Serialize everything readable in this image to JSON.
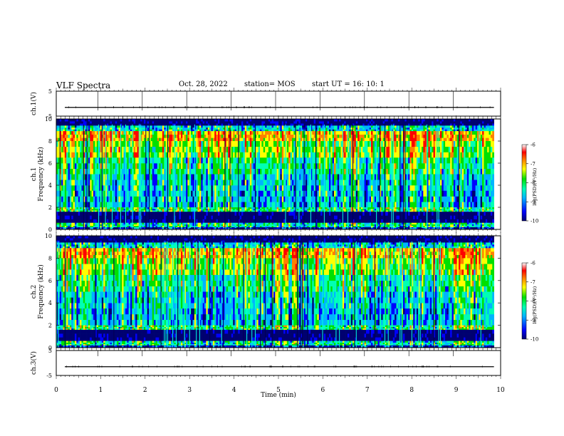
{
  "header": {
    "title": "VLF Spectra",
    "date": "Oct. 28, 2022",
    "station": "station= MOS",
    "start": "start  UT =   16: 10: 1"
  },
  "colors": {
    "colormap": [
      "#000070",
      "#0000ff",
      "#00b4ff",
      "#00ffb4",
      "#00e000",
      "#ffff00",
      "#ff8000",
      "#ff0000",
      "#ffffff"
    ]
  },
  "chart_data": [
    {
      "id": "ch1-voltage",
      "type": "line",
      "ylabel": "ch.1(V)",
      "ylim": [
        -5,
        5
      ],
      "y_ticks": [
        "-5",
        "5"
      ],
      "series": [
        {
          "values": [
            -1.5
          ]
        }
      ]
    },
    {
      "id": "ch1-spectrogram",
      "type": "heatmap",
      "ylabel": "ch.1\nFrequency (kHz)",
      "ylim": [
        0,
        10
      ],
      "y_ticks": [
        "0",
        "2",
        "4",
        "6",
        "8",
        "10"
      ],
      "xlim": [
        0,
        9.85
      ],
      "colorbar": {
        "label": "log(PSD)(V²/Hz)",
        "range": [
          -10,
          -6
        ],
        "ticks": [
          "-6",
          "-7",
          "-8",
          "-9",
          "-10"
        ]
      }
    },
    {
      "id": "ch2-spectrogram",
      "type": "heatmap",
      "ylabel": "ch.2\nFrequency (kHz)",
      "ylim": [
        0,
        10
      ],
      "y_ticks": [
        "0",
        "2",
        "4",
        "6",
        "8",
        "10"
      ],
      "xlim": [
        0,
        9.85
      ],
      "colorbar": {
        "label": "log(PSD)(V²/Hz)",
        "range": [
          -10,
          -6
        ],
        "ticks": [
          "-6",
          "-7",
          "-8",
          "-9",
          "-10"
        ]
      }
    },
    {
      "id": "ch3-voltage",
      "type": "line",
      "ylabel": "ch.3(V)",
      "ylim": [
        -5,
        5
      ],
      "y_ticks": [
        "-5",
        "5"
      ],
      "series": [
        {
          "values": [
            -1.5
          ]
        }
      ]
    }
  ],
  "x_axis": {
    "label": "Time  (min)",
    "range": [
      0,
      10
    ],
    "ticks": [
      "0",
      "1",
      "2",
      "3",
      "4",
      "5",
      "6",
      "7",
      "8",
      "9",
      "10"
    ]
  }
}
